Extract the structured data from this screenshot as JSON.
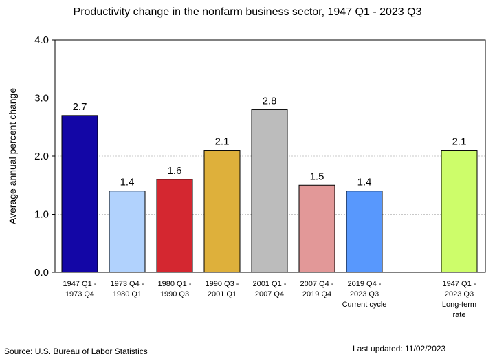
{
  "chart_data": {
    "type": "bar",
    "title": "Productivity change in the nonfarm business sector, 1947 Q1 - 2023 Q3",
    "ylabel": "Average annual percent change",
    "xlabel": "",
    "ylim": [
      0,
      4
    ],
    "yticks": [
      "0.0",
      "1.0",
      "2.0",
      "3.0",
      "4.0"
    ],
    "grid": true,
    "legend": "none",
    "bars": [
      {
        "label": [
          "1947 Q1 -",
          "1973 Q4"
        ],
        "value": 2.7,
        "value_label": "2.7",
        "color": "#1306a6",
        "slot": 0
      },
      {
        "label": [
          "1973 Q4 -",
          "1980 Q1"
        ],
        "value": 1.4,
        "value_label": "1.4",
        "color": "#b1d2fd",
        "slot": 1
      },
      {
        "label": [
          "1980 Q1 -",
          "1990 Q3"
        ],
        "value": 1.6,
        "value_label": "1.6",
        "color": "#d42730",
        "slot": 2
      },
      {
        "label": [
          "1990 Q3 -",
          "2001 Q1"
        ],
        "value": 2.1,
        "value_label": "2.1",
        "color": "#deb03b",
        "slot": 3
      },
      {
        "label": [
          "2001 Q1 -",
          "2007 Q4"
        ],
        "value": 2.8,
        "value_label": "2.8",
        "color": "#bcbcbc",
        "slot": 4
      },
      {
        "label": [
          "2007 Q4 -",
          "2019 Q4"
        ],
        "value": 1.5,
        "value_label": "1.5",
        "color": "#e29898",
        "slot": 5
      },
      {
        "label": [
          "2019 Q4 -",
          "2023 Q3",
          "Current cycle"
        ],
        "value": 1.4,
        "value_label": "1.4",
        "color": "#5898fd",
        "slot": 6
      },
      {
        "label": [
          "1947 Q1 -",
          "2023 Q3",
          "Long-term",
          "rate"
        ],
        "value": 2.1,
        "value_label": "2.1",
        "color": "#cdfd6a",
        "slot": 8
      }
    ]
  },
  "footer": {
    "source": "Source: U.S. Bureau of Labor Statistics",
    "updated": "Last updated: 11/02/2023"
  }
}
